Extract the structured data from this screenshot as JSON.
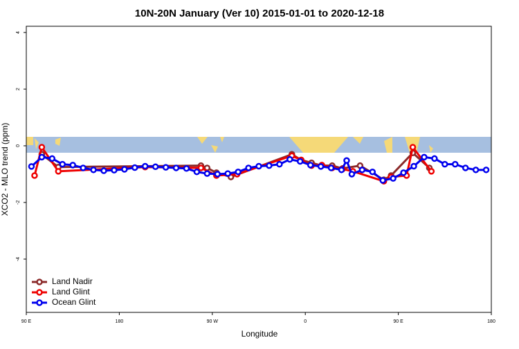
{
  "chart_data": {
    "type": "line",
    "title": "10N-20N January (Ver 10)   2015-01-01 to 2020-12-18",
    "x_label": "Longitude",
    "y_label": "XCO2 - MLO trend (ppm)",
    "xlim": [
      90,
      540
    ],
    "ylim": [
      -5.88,
      4.22
    ],
    "xticks": [
      {
        "value": 90,
        "label": "90 E"
      },
      180,
      {
        "value": 270,
        "label": "90 W"
      },
      {
        "value": 360,
        "label": "0"
      },
      {
        "value": 450,
        "label": "90 E"
      },
      {
        "value": 540,
        "label": "180"
      }
    ],
    "yticks": [
      -4,
      -2,
      0,
      2,
      4
    ],
    "legend": "bottom-left",
    "series": [
      {
        "name": "Land Nadir",
        "color": "#8b2a2a",
        "x": [
          105,
          121,
          259,
          265,
          274,
          288,
          347,
          356,
          366,
          376,
          386,
          396,
          413,
          436,
          443,
          464,
          480
        ],
        "values": [
          -0.3,
          -0.75,
          -0.7,
          -0.78,
          -0.95,
          -1.1,
          -0.3,
          -0.5,
          -0.6,
          -0.7,
          -0.7,
          -0.8,
          -0.7,
          -1.2,
          -1.05,
          -0.25,
          -0.78
        ]
      },
      {
        "name": "Land Glint",
        "color": "#ee0000",
        "x": [
          98,
          105,
          121,
          205,
          259,
          274,
          294,
          347,
          356,
          366,
          376,
          386,
          396,
          406,
          436,
          443,
          458,
          464,
          482
        ],
        "values": [
          -1.05,
          -0.05,
          -0.9,
          -0.75,
          -0.78,
          -1.05,
          -1.0,
          -0.35,
          -0.5,
          -0.7,
          -0.68,
          -0.78,
          -0.82,
          -0.9,
          -1.25,
          -1.1,
          -1.05,
          -0.05,
          -0.9
        ]
      },
      {
        "name": "Ocean Glint",
        "color": "#0000ee",
        "x": [
          95,
          105,
          115,
          125,
          135,
          145,
          155,
          165,
          175,
          185,
          195,
          205,
          215,
          225,
          235,
          245,
          255,
          265,
          275,
          285,
          295,
          305,
          315,
          325,
          335,
          345,
          355,
          365,
          375,
          385,
          395,
          400,
          405,
          415,
          425,
          435,
          445,
          455,
          465,
          475,
          485,
          495,
          505,
          515,
          525,
          535
        ],
        "values": [
          -0.73,
          -0.4,
          -0.45,
          -0.65,
          -0.68,
          -0.78,
          -0.85,
          -0.88,
          -0.86,
          -0.83,
          -0.77,
          -0.72,
          -0.74,
          -0.76,
          -0.78,
          -0.8,
          -0.92,
          -0.98,
          -1.0,
          -0.98,
          -0.92,
          -0.78,
          -0.72,
          -0.7,
          -0.65,
          -0.48,
          -0.55,
          -0.68,
          -0.73,
          -0.78,
          -0.85,
          -0.52,
          -1.0,
          -0.85,
          -0.92,
          -1.22,
          -1.15,
          -0.95,
          -0.72,
          -0.4,
          -0.45,
          -0.65,
          -0.65,
          -0.78,
          -0.85,
          -0.85
        ]
      }
    ]
  }
}
